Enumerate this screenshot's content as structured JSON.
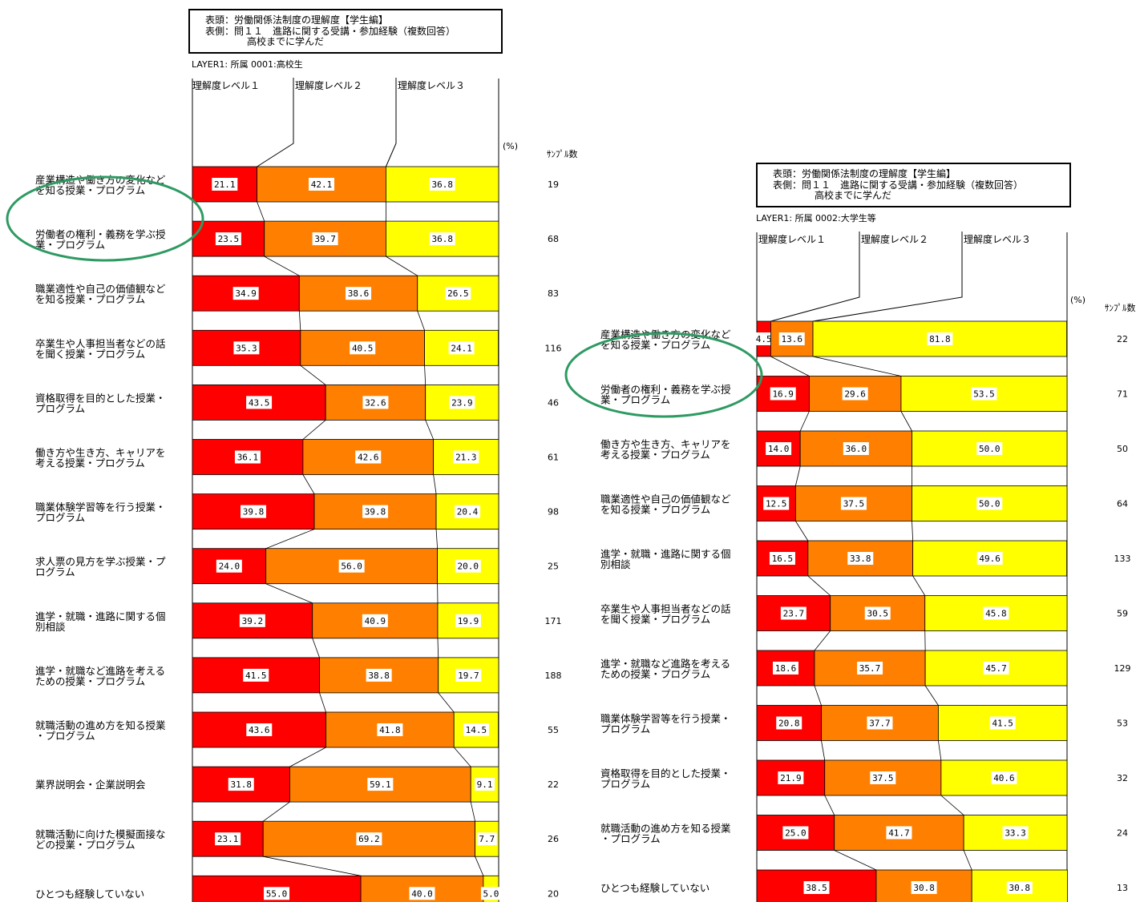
{
  "colors": {
    "level1": "#ff0000",
    "level2": "#ff8000",
    "level3": "#ffff00",
    "ellipse": "#2e9a62"
  },
  "unit_label": "(%)",
  "sample_label": "ｻﾝﾌﾟﾙ数",
  "chart_data": [
    {
      "type": "bar",
      "stacked": true,
      "orientation": "horizontal",
      "title_lines": [
        "表頭：労働関係法制度の理解度【学生編】",
        "表側：問１１　進路に関する受講・参加経験（複数回答）",
        "高校までに学んだ"
      ],
      "layer": "LAYER1: 所属 0001:高校生",
      "legend": [
        "理解度レベル１",
        "理解度レベル２",
        "理解度レベル３"
      ],
      "categories": [
        [
          "産業構造や働き方の変化など",
          "を知る授業・プログラム"
        ],
        [
          "労働者の権利・義務を学ぶ授",
          "業・プログラム"
        ],
        [
          "職業適性や自己の価値観など",
          "を知る授業・プログラム"
        ],
        [
          "卒業生や人事担当者などの話",
          "を聞く授業・プログラム"
        ],
        [
          "資格取得を目的とした授業・",
          "プログラム"
        ],
        [
          "働き方や生き方、キャリアを",
          "考える授業・プログラム"
        ],
        [
          "職業体験学習等を行う授業・",
          "プログラム"
        ],
        [
          "求人票の見方を学ぶ授業・プ",
          "ログラム"
        ],
        [
          "進学・就職・進路に関する個",
          "別相談"
        ],
        [
          "進学・就職など進路を考える",
          "ための授業・プログラム"
        ],
        [
          "就職活動の進め方を知る授業",
          "・プログラム"
        ],
        [
          "業界説明会・企業説明会"
        ],
        [
          "就職活動に向けた模擬面接な",
          "どの授業・プログラム"
        ],
        [
          "ひとつも経験していない"
        ]
      ],
      "series": [
        {
          "name": "理解度レベル１",
          "values": [
            "21.1",
            "23.5",
            "34.9",
            "35.3",
            "43.5",
            "36.1",
            "39.8",
            "24.0",
            "39.2",
            "41.5",
            "43.6",
            "31.8",
            "23.1",
            "55.0"
          ]
        },
        {
          "name": "理解度レベル２",
          "values": [
            "42.1",
            "39.7",
            "38.6",
            "40.5",
            "32.6",
            "42.6",
            "39.8",
            "56.0",
            "40.9",
            "38.8",
            "41.8",
            "59.1",
            "69.2",
            "40.0"
          ]
        },
        {
          "name": "理解度レベル３",
          "values": [
            "36.8",
            "36.8",
            "26.5",
            "24.1",
            "23.9",
            "21.3",
            "20.4",
            "20.0",
            "19.9",
            "19.7",
            "14.5",
            "9.1",
            "7.7",
            "5.0"
          ]
        }
      ],
      "samples": [
        "19",
        "68",
        "83",
        "116",
        "46",
        "61",
        "98",
        "25",
        "171",
        "188",
        "55",
        "22",
        "26",
        "20"
      ],
      "highlight_rows": [
        0,
        1
      ]
    },
    {
      "type": "bar",
      "stacked": true,
      "orientation": "horizontal",
      "title_lines": [
        "表頭：労働関係法制度の理解度【学生編】",
        "表側：問１１　進路に関する受講・参加経験（複数回答）",
        "高校までに学んだ"
      ],
      "layer": "LAYER1: 所属 0002:大学生等",
      "legend": [
        "理解度レベル１",
        "理解度レベル２",
        "理解度レベル３"
      ],
      "categories": [
        [
          "産業構造や働き方の変化など",
          "を知る授業・プログラム"
        ],
        [
          "労働者の権利・義務を学ぶ授",
          "業・プログラム"
        ],
        [
          "働き方や生き方、キャリアを",
          "考える授業・プログラム"
        ],
        [
          "職業適性や自己の価値観など",
          "を知る授業・プログラム"
        ],
        [
          "進学・就職・進路に関する個",
          "別相談"
        ],
        [
          "卒業生や人事担当者などの話",
          "を聞く授業・プログラム"
        ],
        [
          "進学・就職など進路を考える",
          "ための授業・プログラム"
        ],
        [
          "職業体験学習等を行う授業・",
          "プログラム"
        ],
        [
          "資格取得を目的とした授業・",
          "プログラム"
        ],
        [
          "就職活動の進め方を知る授業",
          "・プログラム"
        ],
        [
          "ひとつも経験していない"
        ]
      ],
      "series": [
        {
          "name": "理解度レベル１",
          "values": [
            "4.5",
            "16.9",
            "14.0",
            "12.5",
            "16.5",
            "23.7",
            "18.6",
            "20.8",
            "21.9",
            "25.0",
            "38.5"
          ]
        },
        {
          "name": "理解度レベル２",
          "values": [
            "13.6",
            "29.6",
            "36.0",
            "37.5",
            "33.8",
            "30.5",
            "35.7",
            "37.7",
            "37.5",
            "41.7",
            "30.8"
          ]
        },
        {
          "name": "理解度レベル３",
          "values": [
            "81.8",
            "53.5",
            "50.0",
            "50.0",
            "49.6",
            "45.8",
            "45.7",
            "41.5",
            "40.6",
            "33.3",
            "30.8"
          ]
        }
      ],
      "samples": [
        "22",
        "71",
        "50",
        "64",
        "133",
        "59",
        "129",
        "53",
        "32",
        "24",
        "13"
      ],
      "highlight_rows": [
        0,
        1
      ]
    }
  ]
}
